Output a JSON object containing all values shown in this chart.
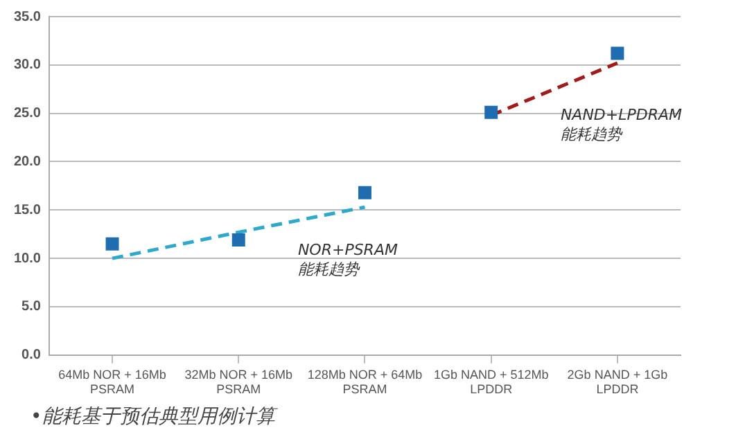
{
  "chart_data": {
    "type": "scatter",
    "categories": [
      "64Mb NOR + 16Mb PSRAM",
      "32Mb NOR + 16Mb PSRAM",
      "128Mb NOR + 64Mb PSRAM",
      "1Gb NAND + 512Mb LPDDR",
      "2Gb NAND + 1Gb LPDDR"
    ],
    "series": [
      {
        "color": "#1f6db0",
        "values": [
          11.5,
          11.9,
          16.8,
          25.1,
          31.2
        ]
      },
      {
        "type": "line",
        "color": "#2ea8cc",
        "values": [
          10.0,
          12.7,
          15.3,
          null,
          null
        ],
        "line_style": "dashed",
        "marker": "none"
      },
      {
        "type": "line",
        "color": "#a01c1c",
        "values": [
          null,
          null,
          null,
          24.8,
          30.2
        ],
        "line_style": "dashed",
        "marker": "none"
      }
    ],
    "marker": "square",
    "ylim": [
      0,
      35
    ],
    "yticks": [
      {
        "value": 0,
        "label": "0.0"
      },
      {
        "value": 5,
        "label": "5.0"
      },
      {
        "value": 10,
        "label": "10.0"
      },
      {
        "value": 15,
        "label": "15.0"
      },
      {
        "value": 20,
        "label": "20.0"
      },
      {
        "value": 25,
        "label": "25.0"
      },
      {
        "value": 30,
        "label": "30.0"
      },
      {
        "value": 35,
        "label": "35.0"
      }
    ],
    "grid": "y",
    "legend": false,
    "annotations": [
      "NOR+PSRAM\n能耗趋势",
      "NAND+LPDRAM\n能耗趋势",
      "•能耗基于预估典型用例计算"
    ]
  }
}
